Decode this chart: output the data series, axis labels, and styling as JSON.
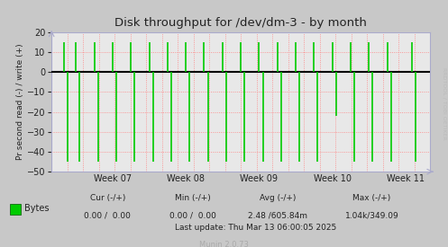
{
  "title": "Disk throughput for /dev/dm-3 - by month",
  "ylabel": "Pr second read (-) / write (+)",
  "background_color": "#c8c8c8",
  "plot_bg_color": "#e8e8e8",
  "grid_color": "#ff8080",
  "axis_color": "#aaaacc",
  "title_color": "#222222",
  "text_color": "#222222",
  "ylim": [
    -50,
    20
  ],
  "yticks": [
    -50,
    -40,
    -30,
    -20,
    -10,
    0,
    10,
    20
  ],
  "x_week_labels": [
    "Week 07",
    "Week 08",
    "Week 09",
    "Week 10",
    "Week 11"
  ],
  "watermark": "RRDTOOL / TOBI OETIKER",
  "munin_version": "Munin 2.0.73",
  "legend_label": "Bytes",
  "legend_color": "#00cc00",
  "last_update": "Last update: Thu Mar 13 06:00:05 2025",
  "spike_color": "#00cc00",
  "zero_line_color": "#000000",
  "spike_x_up": [
    2,
    4,
    7,
    10,
    13,
    16,
    19,
    22,
    25,
    28,
    31,
    34,
    37,
    40,
    43,
    46,
    49,
    52,
    55,
    59
  ],
  "spike_x_dn": [
    2.6,
    4.6,
    7.6,
    10.6,
    13.6,
    16.6,
    19.6,
    22.6,
    25.6,
    28.6,
    31.6,
    34.6,
    37.6,
    40.6,
    43.6,
    46.6,
    49.6,
    52.6,
    55.6,
    59.6
  ],
  "spike_tops_up": [
    15,
    15,
    15,
    15,
    15,
    15,
    15,
    15,
    15,
    15,
    15,
    15,
    15,
    15,
    15,
    15,
    15,
    15,
    15,
    15
  ],
  "spike_tops_dn": [
    -45,
    -45,
    -45,
    -45,
    -45,
    -45,
    -45,
    -45,
    -45,
    -45,
    -45,
    -45,
    -45,
    -45,
    -45,
    -22,
    -45,
    -45,
    -45,
    -45
  ],
  "xlim": [
    0,
    62
  ],
  "week_x_ticks": [
    10,
    22,
    34,
    46,
    58
  ]
}
